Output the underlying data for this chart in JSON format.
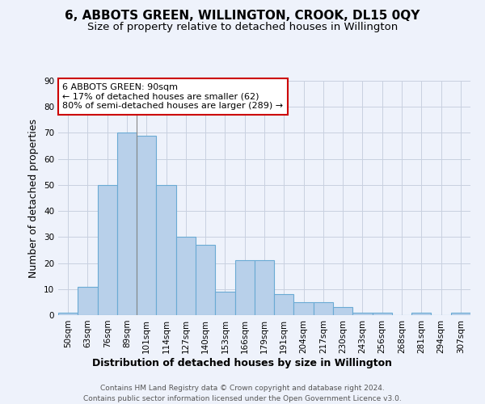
{
  "title": "6, ABBOTS GREEN, WILLINGTON, CROOK, DL15 0QY",
  "subtitle": "Size of property relative to detached houses in Willington",
  "xlabel": "Distribution of detached houses by size in Willington",
  "ylabel": "Number of detached properties",
  "bar_labels": [
    "50sqm",
    "63sqm",
    "76sqm",
    "89sqm",
    "101sqm",
    "114sqm",
    "127sqm",
    "140sqm",
    "153sqm",
    "166sqm",
    "179sqm",
    "191sqm",
    "204sqm",
    "217sqm",
    "230sqm",
    "243sqm",
    "256sqm",
    "268sqm",
    "281sqm",
    "294sqm",
    "307sqm"
  ],
  "bar_values": [
    1,
    11,
    50,
    70,
    69,
    50,
    30,
    27,
    9,
    21,
    21,
    8,
    5,
    5,
    3,
    1,
    1,
    0,
    1,
    0,
    1
  ],
  "bar_color": "#b8d0ea",
  "bar_edge_color": "#6aaad4",
  "highlight_index": 3,
  "highlight_line_color": "#888888",
  "annotation_text": "6 ABBOTS GREEN: 90sqm\n← 17% of detached houses are smaller (62)\n80% of semi-detached houses are larger (289) →",
  "annotation_box_color": "#ffffff",
  "annotation_box_edge_color": "#cc0000",
  "ylim": [
    0,
    90
  ],
  "yticks": [
    0,
    10,
    20,
    30,
    40,
    50,
    60,
    70,
    80,
    90
  ],
  "grid_color": "#c8d0e0",
  "background_color": "#eef2fb",
  "footer_line1": "Contains HM Land Registry data © Crown copyright and database right 2024.",
  "footer_line2": "Contains public sector information licensed under the Open Government Licence v3.0.",
  "title_fontsize": 11,
  "subtitle_fontsize": 9.5,
  "axis_label_fontsize": 9,
  "tick_fontsize": 7.5,
  "annotation_fontsize": 8,
  "footer_fontsize": 6.5
}
